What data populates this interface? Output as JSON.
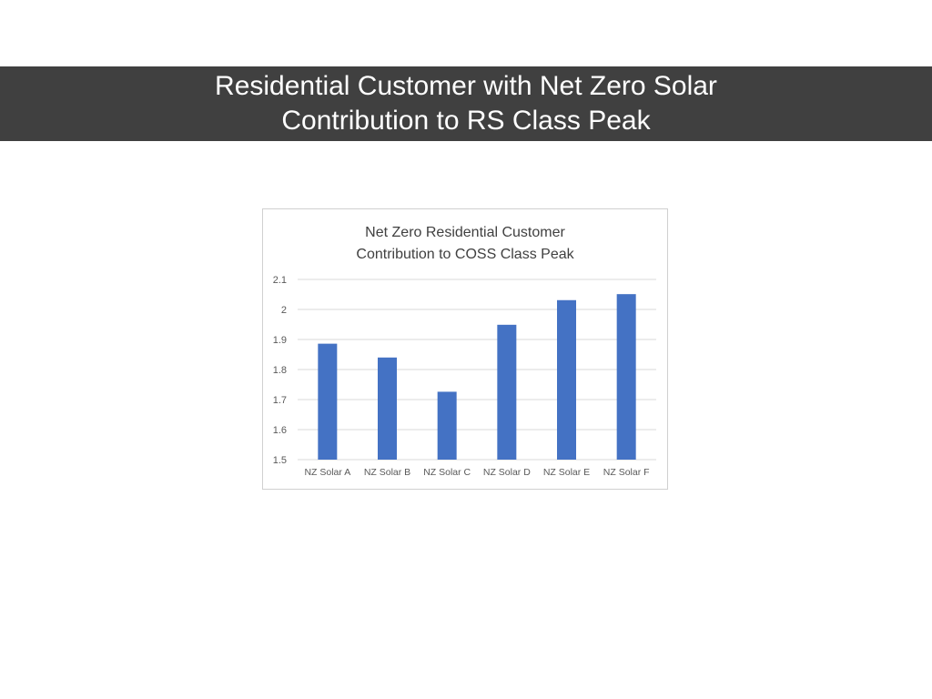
{
  "slide": {
    "title_line1": "Residential Customer with Net Zero Solar",
    "title_line2": "Contribution to RS Class Peak"
  },
  "colors": {
    "title_band": "#404040",
    "bar": "#4472C4",
    "gridline": "#d9d9d9",
    "axis_text": "#595959",
    "chart_title_text": "#404040"
  },
  "chart_data": {
    "type": "bar",
    "title_line1": "Net Zero Residential Customer",
    "title_line2": "Contribution to COSS Class Peak",
    "categories": [
      "NZ Solar A",
      "NZ Solar B",
      "NZ Solar C",
      "NZ Solar D",
      "NZ Solar E",
      "NZ Solar F"
    ],
    "values": [
      1.886,
      1.84,
      1.726,
      1.949,
      2.031,
      2.051
    ],
    "ylim": [
      1.5,
      2.1
    ],
    "yticks": [
      "1.5",
      "1.6",
      "1.7",
      "1.8",
      "1.9",
      "2",
      "2.1"
    ],
    "xlabel": "",
    "ylabel": "",
    "grid": true,
    "legend": "none"
  }
}
